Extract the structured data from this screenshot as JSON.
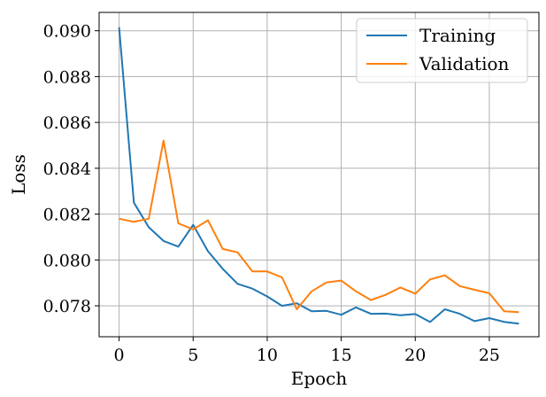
{
  "chart_data": {
    "type": "line",
    "xlabel": "Epoch",
    "ylabel": "Loss",
    "xlim": [
      -1.35,
      28.35
    ],
    "ylim": [
      0.07665,
      0.0908
    ],
    "xticks": [
      0,
      5,
      10,
      15,
      20,
      25
    ],
    "yticks": [
      0.078,
      0.08,
      0.082,
      0.084,
      0.086,
      0.088,
      0.09
    ],
    "xtick_labels": [
      "0",
      "5",
      "10",
      "15",
      "20",
      "25"
    ],
    "ytick_labels": [
      "0.078",
      "0.080",
      "0.082",
      "0.084",
      "0.086",
      "0.088",
      "0.090"
    ],
    "grid": true,
    "legend_position": "top-right",
    "series": [
      {
        "name": "Training",
        "color": "#1f77b4",
        "x": [
          0,
          1,
          2,
          3,
          4,
          5,
          6,
          7,
          8,
          9,
          10,
          11,
          12,
          13,
          14,
          15,
          16,
          17,
          18,
          19,
          20,
          21,
          22,
          23,
          24,
          25,
          26,
          27
        ],
        "values": [
          0.09015,
          0.0825,
          0.08143,
          0.08083,
          0.08058,
          0.08153,
          0.08038,
          0.07961,
          0.07896,
          0.07875,
          0.07841,
          0.078,
          0.07811,
          0.07776,
          0.07778,
          0.07761,
          0.07793,
          0.07765,
          0.07766,
          0.07759,
          0.07764,
          0.07729,
          0.07785,
          0.07765,
          0.07733,
          0.07746,
          0.0773,
          0.07722
        ]
      },
      {
        "name": "Validation",
        "color": "#ff7f0e",
        "x": [
          0,
          1,
          2,
          3,
          4,
          5,
          6,
          7,
          8,
          9,
          10,
          11,
          12,
          13,
          14,
          15,
          16,
          17,
          18,
          19,
          20,
          21,
          22,
          23,
          24,
          25,
          26,
          27
        ],
        "values": [
          0.0818,
          0.08166,
          0.0818,
          0.08521,
          0.0816,
          0.08133,
          0.08173,
          0.08048,
          0.08033,
          0.0795,
          0.0795,
          0.07924,
          0.07785,
          0.07863,
          0.07902,
          0.0791,
          0.07863,
          0.07825,
          0.07848,
          0.0788,
          0.07853,
          0.07915,
          0.07933,
          0.07886,
          0.0787,
          0.07855,
          0.07776,
          0.07772
        ]
      }
    ]
  }
}
